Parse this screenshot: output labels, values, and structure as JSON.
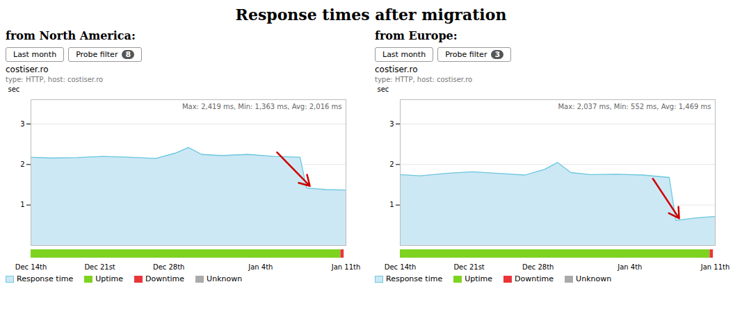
{
  "title": "Response times after migration",
  "chart_data": [
    {
      "type": "area",
      "subtitle": "from North America:",
      "site_name": "costiser.ro",
      "site_type": "type: HTTP, host: costiser.ro",
      "toolbar": [
        "Last month",
        "Probe filter"
      ],
      "probe_filter": 8,
      "annotations": [
        {
          "text": "Max: 2,419 ms, Min: 1,363 ms, Avg: 2,016 ms"
        },
        {
          "arrow_from": [
            37.5,
            2.3
          ],
          "arrow_to": [
            42.5,
            1.47
          ],
          "color": "#cc0000"
        }
      ],
      "x": [
        0,
        3,
        7,
        11,
        15,
        19,
        22,
        24,
        26,
        29,
        33,
        37,
        41,
        42,
        45,
        48
      ],
      "series": [
        {
          "name": "Response time",
          "color": "#6cc8e0",
          "fill_color": "#cce8f4",
          "values": [
            2.18,
            2.16,
            2.17,
            2.2,
            2.18,
            2.15,
            2.28,
            2.42,
            2.25,
            2.22,
            2.25,
            2.2,
            2.18,
            1.42,
            1.38,
            1.37
          ]
        }
      ],
      "xlim": [
        0,
        48
      ],
      "xticks": [
        {
          "value": 0,
          "label": "Dec 14th"
        },
        {
          "value": 10.5,
          "label": "Dec 21st"
        },
        {
          "value": 21,
          "label": "Dec 28th"
        },
        {
          "value": 35,
          "label": "Jan 4th"
        },
        {
          "value": 48,
          "label": "Jan 11th"
        }
      ],
      "ylim": [
        0,
        3.6
      ],
      "yticks": [
        1,
        2,
        3
      ],
      "ylabel": "sec",
      "grid": "y",
      "legend": "bottom",
      "status_bar": [
        {
          "name": "Uptime",
          "color": "#7ed321",
          "values": [
            47.2
          ]
        },
        {
          "name": "Downtime",
          "color": "#e8353a",
          "values": [
            0.5
          ]
        },
        {
          "name": "Unknown",
          "color": "#aaaaaa",
          "values": []
        }
      ]
    },
    {
      "type": "area",
      "subtitle": "from Europe:",
      "site_name": "costiser.ro",
      "site_type": "type: HTTP, host: costiser.ro",
      "toolbar": [
        "Last month",
        "Probe filter"
      ],
      "probe_filter": 3,
      "annotations": [
        {
          "text": "Max: 2,037 ms, Min: 552 ms, Avg: 1,469 ms"
        },
        {
          "arrow_from": [
            38.5,
            1.65
          ],
          "arrow_to": [
            42.5,
            0.67
          ],
          "color": "#cc0000"
        }
      ],
      "x": [
        0,
        3,
        7,
        11,
        15,
        19,
        22,
        24,
        26,
        29,
        33,
        37,
        41,
        42,
        45,
        48
      ],
      "series": [
        {
          "name": "Response time",
          "color": "#6cc8e0",
          "fill_color": "#cce8f4",
          "values": [
            1.75,
            1.72,
            1.78,
            1.82,
            1.78,
            1.74,
            1.88,
            2.05,
            1.8,
            1.75,
            1.76,
            1.74,
            1.68,
            0.62,
            0.68,
            0.72
          ]
        }
      ],
      "xlim": [
        0,
        48
      ],
      "xticks": [
        {
          "value": 0,
          "label": "Dec 14th"
        },
        {
          "value": 10.5,
          "label": "Dec 21st"
        },
        {
          "value": 21,
          "label": "Dec 28th"
        },
        {
          "value": 35,
          "label": "Jan 4th"
        },
        {
          "value": 48,
          "label": "Jan 11th"
        }
      ],
      "ylim": [
        0,
        3.6
      ],
      "yticks": [
        1,
        2,
        3
      ],
      "ylabel": "sec",
      "grid": "y",
      "legend": "bottom",
      "status_bar": [
        {
          "name": "Uptime",
          "color": "#7ed321",
          "values": [
            47.2
          ]
        },
        {
          "name": "Downtime",
          "color": "#e8353a",
          "values": [
            0.5
          ]
        },
        {
          "name": "Unknown",
          "color": "#aaaaaa",
          "values": []
        }
      ]
    }
  ]
}
